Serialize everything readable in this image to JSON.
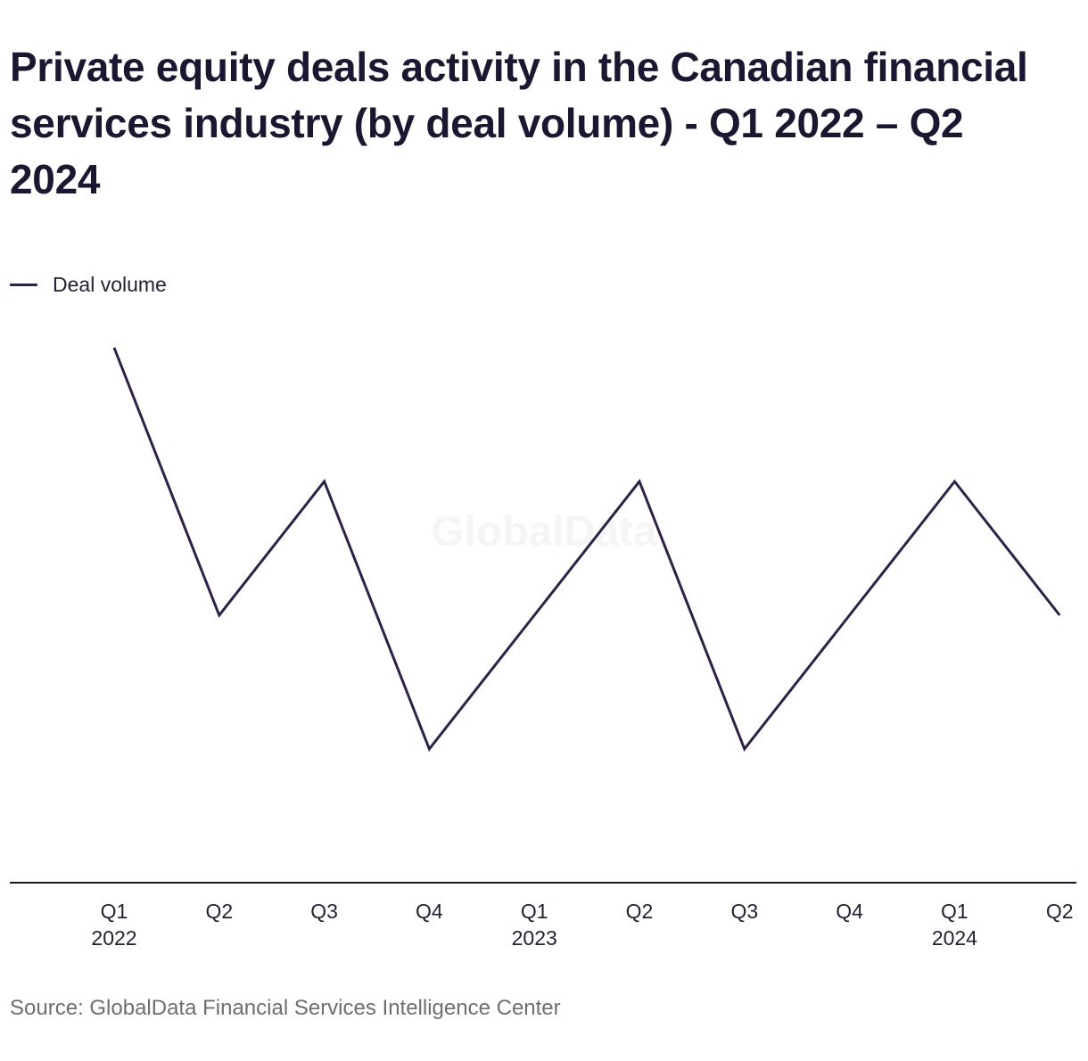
{
  "chart_data": {
    "type": "line",
    "title": "Private equity deals activity in the Canadian financial services industry (by deal volume) - Q1 2022 – Q2 2024",
    "categories": [
      "Q1",
      "Q2",
      "Q3",
      "Q4",
      "Q1",
      "Q2",
      "Q3",
      "Q4",
      "Q1",
      "Q2"
    ],
    "year_labels": [
      "2022",
      "",
      "",
      "",
      "2023",
      "",
      "",
      "",
      "2024",
      ""
    ],
    "series": [
      {
        "name": "Deal volume",
        "color": "#2d2147",
        "values": [
          4,
          2,
          3,
          1,
          2,
          3,
          1,
          2,
          3,
          2
        ]
      }
    ],
    "ylim": [
      0,
      4.4
    ],
    "y_axis_visible": false,
    "grid": false,
    "legend_position": "top-left",
    "xlabel": "",
    "ylabel": "",
    "source": "Source: GlobalData Financial Services Intelligence Center",
    "watermark": "GlobalData"
  }
}
